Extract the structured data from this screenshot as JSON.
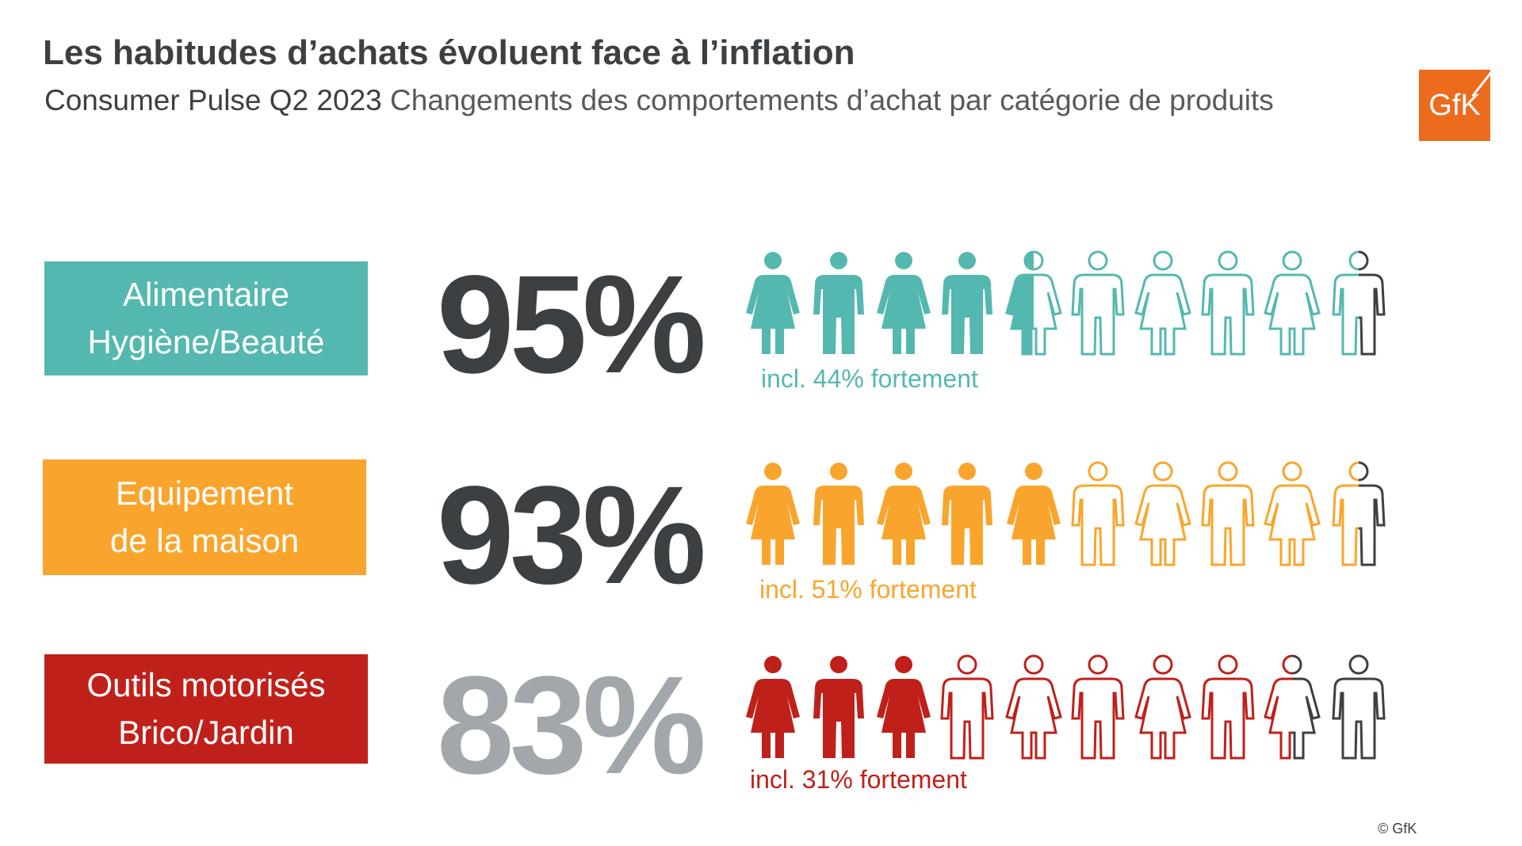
{
  "title": "Les habitudes d’achats évoluent face à l’inflation",
  "subtitle": {
    "strong": "Consumer Pulse Q2 2023",
    "rest": " Changements des comportements d’achat par catégorie de produits"
  },
  "logo": {
    "text": "GfK",
    "color": "#ec6b1c"
  },
  "copyright": "© GfK",
  "chart_data": {
    "type": "pictogram",
    "unit": "%",
    "rows": [
      {
        "category_lines": [
          "Alimentaire",
          "Hygiène/Beauté"
        ],
        "value": 95,
        "value_label": "95%",
        "strong_value": 44,
        "incl_label": "incl. 44% fortement",
        "color": "#55b8b0",
        "value_color": "#3c4043"
      },
      {
        "category_lines": [
          "Equipement",
          "de la maison"
        ],
        "value": 93,
        "value_label": "93%",
        "strong_value": 51,
        "incl_label": "incl. 51% fortement",
        "color": "#f9a52d",
        "value_color": "#3c4043"
      },
      {
        "category_lines": [
          "Outils motorisés",
          "Brico/Jardin"
        ],
        "value": 83,
        "value_label": "83%",
        "strong_value": 31,
        "incl_label": "incl. 31% fortement",
        "color": "#c0201a",
        "value_color": "#a2a7ab"
      }
    ],
    "icons_per_row": 10,
    "icon_pattern": [
      "female",
      "male",
      "female",
      "male",
      "female",
      "male",
      "female",
      "male",
      "female",
      "male"
    ],
    "remainder_color": "#3c4043"
  }
}
